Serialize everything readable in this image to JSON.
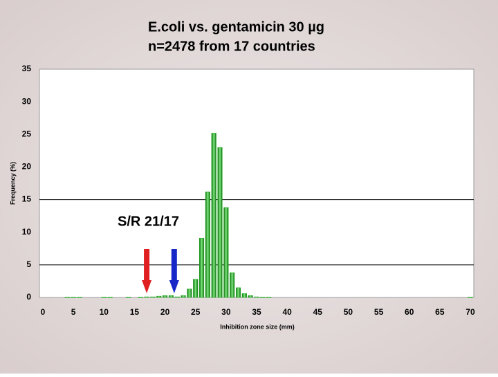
{
  "chart_data": {
    "type": "bar",
    "title": [
      "E.coli vs. gentamicin 30 µg",
      "n=2478 from 17 countries"
    ],
    "xlabel": "Inhibition zone size (mm)",
    "ylabel": "Frequency (%)",
    "annotation": "S/R 21/17",
    "x": [
      4,
      5,
      6,
      10,
      11,
      14,
      16,
      17,
      18,
      19,
      20,
      21,
      22,
      23,
      24,
      25,
      26,
      27,
      28,
      29,
      30,
      31,
      32,
      33,
      34,
      35,
      36,
      37,
      70
    ],
    "values": [
      0.05,
      0.05,
      0.05,
      0.05,
      0.05,
      0.05,
      0.05,
      0.1,
      0.1,
      0.2,
      0.3,
      0.3,
      0.1,
      0.3,
      1.3,
      2.8,
      9.1,
      16.2,
      25.2,
      23.0,
      13.8,
      3.8,
      1.5,
      0.6,
      0.3,
      0.1,
      0.05,
      0.05,
      0.05
    ],
    "color": "#22b022",
    "markers": [
      {
        "x": 17,
        "color": "#e02020"
      },
      {
        "x": 21.5,
        "color": "#1828c8"
      }
    ],
    "xlim": [
      0,
      70
    ],
    "xticks": [
      0,
      5,
      10,
      15,
      20,
      25,
      30,
      35,
      40,
      45,
      50,
      55,
      60,
      65,
      70
    ],
    "ylim": [
      0,
      35
    ],
    "yticks": [
      0,
      5,
      10,
      15,
      20,
      25,
      30,
      35
    ],
    "grid_lines": [
      5,
      15
    ]
  }
}
